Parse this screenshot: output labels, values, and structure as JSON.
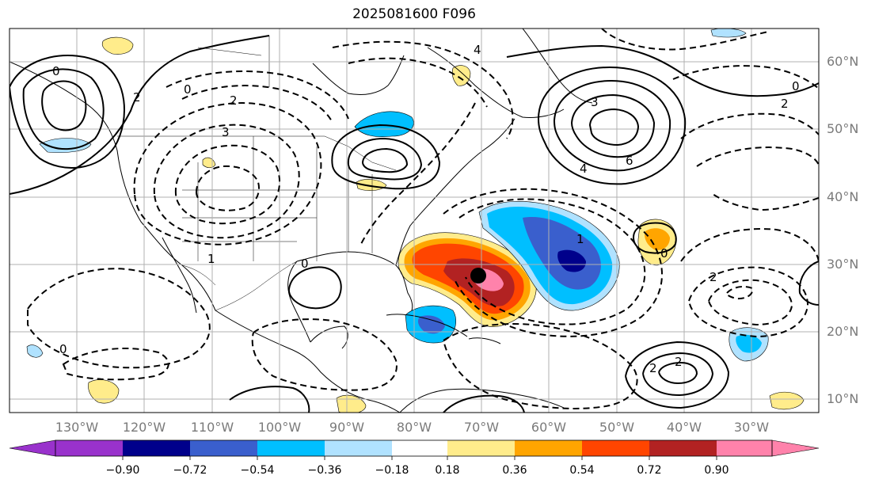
{
  "title": "2025081600 F096",
  "lat_labels": [
    "60°N",
    "50°N",
    "40°N",
    "30°N",
    "20°N",
    "10°N"
  ],
  "lon_labels": [
    "130°W",
    "120°W",
    "110°W",
    "100°W",
    "90°W",
    "80°W",
    "70°W",
    "60°W",
    "50°W",
    "40°W",
    "30°W"
  ],
  "colorbar": {
    "ticks": [
      "−0.90",
      "−0.72",
      "−0.54",
      "−0.36",
      "−0.18",
      "0.18",
      "0.36",
      "0.54",
      "0.72",
      "0.90"
    ],
    "colors": [
      "#9932cc",
      "#00008b",
      "#3a5fcd",
      "#00bfff",
      "#b0e2ff",
      "#ffffff",
      "#ffec8b",
      "#ffa500",
      "#ff4500",
      "#b22222",
      "#ff82ab"
    ]
  },
  "contour_labels": [
    "0",
    "2",
    "3",
    "1",
    "2",
    "0",
    "4",
    "6",
    "4",
    "3",
    "2",
    "0",
    "1",
    "2",
    "0",
    "2",
    "0",
    "2",
    "0"
  ],
  "colors": {
    "contour": "#000000",
    "grid": "#b0b0b0",
    "coast": "#000000",
    "storm_marker": "#000000"
  }
}
